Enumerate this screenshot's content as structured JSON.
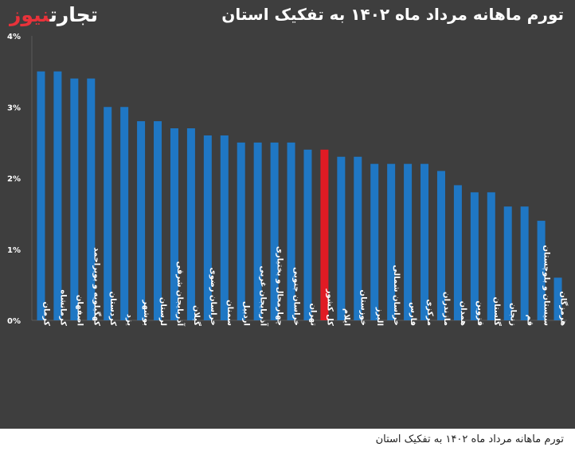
{
  "chart_data": {
    "type": "bar",
    "title": "تورم ماهانه مرداد ماه ۱۴۰۲ به تفکیک استان",
    "categories": [
      "کرمان",
      "کرمانشاه",
      "اصفهان",
      "کهگیلویه و بویراحمد",
      "کردستان",
      "یزد",
      "بوشهر",
      "لرستان",
      "آذربایجان شرقی",
      "گیلان",
      "خراسان رضوی",
      "سمنان",
      "اردبیل",
      "آذربایجان غربی",
      "چهارمحال و بختیاری",
      "خراسان جنوبی",
      "تهران",
      "کل کشور",
      "ایلام",
      "خوزستان",
      "البرز",
      "خراسان شمالی",
      "فارس",
      "مرکزی",
      "مازندران",
      "همدان",
      "قزوین",
      "گلستان",
      "زنجان",
      "قم",
      "سیستان و بلوچستان",
      "هرمزگان"
    ],
    "values": [
      3.5,
      3.5,
      3.4,
      3.4,
      3.0,
      3.0,
      2.8,
      2.8,
      2.7,
      2.7,
      2.6,
      2.6,
      2.5,
      2.5,
      2.5,
      2.5,
      2.4,
      2.4,
      2.3,
      2.3,
      2.2,
      2.2,
      2.2,
      2.2,
      2.1,
      1.9,
      1.8,
      1.8,
      1.6,
      1.6,
      1.4,
      0.6
    ],
    "highlight": "کل کشور",
    "y_ticks": [
      "0%",
      "1%",
      "2%",
      "3%",
      "4%"
    ],
    "ylim": [
      0,
      4
    ],
    "grid": false,
    "colors": {
      "bar": "#1f77c4",
      "highlight": "#e01b24",
      "background": "#3e3e3e",
      "text": "#ffffff"
    }
  },
  "brand": {
    "part1": "تجارت",
    "part2": "نیوز"
  },
  "caption": "تورم ماهانه مرداد ماه ۱۴۰۲ به تفکیک استان"
}
